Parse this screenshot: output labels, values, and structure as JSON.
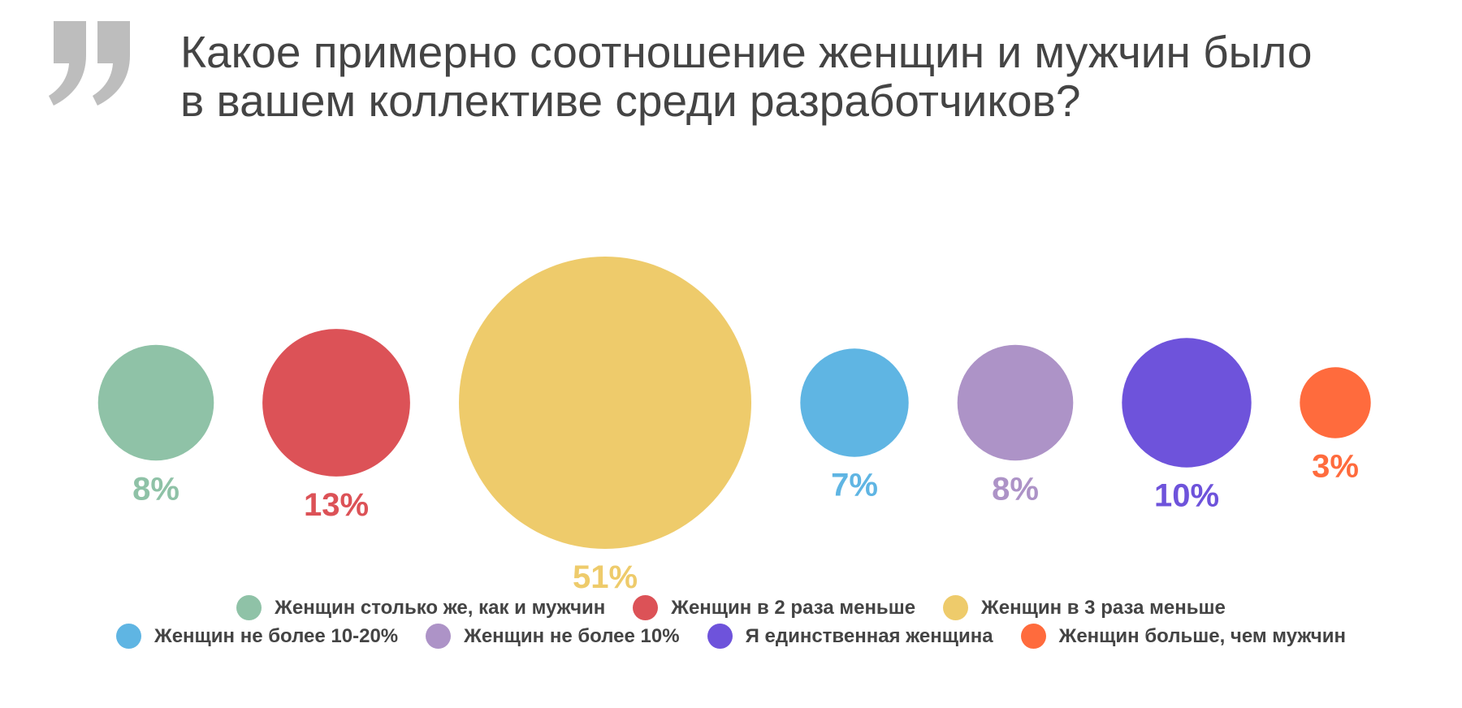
{
  "quote_icon": "closing-quote-icon",
  "colors": {
    "quote": "#bdbdbd",
    "title": "#444444",
    "legend_text": "#444444"
  },
  "chart_data": {
    "type": "bubble",
    "title_lines": [
      "Какое примерно соотношение женщин и мужчин было",
      "в вашем коллективе среди разработчиков?"
    ],
    "series": [
      {
        "name": "Женщин столько же, как и мужчин",
        "value": 8,
        "label": "8%",
        "color": "#8fc2a7"
      },
      {
        "name": "Женщин в 2 раза меньше",
        "value": 13,
        "label": "13%",
        "color": "#dc5257"
      },
      {
        "name": "Женщин в 3 раза меньше",
        "value": 51,
        "label": "51%",
        "color": "#eecb6b"
      },
      {
        "name": "Женщин не более 10-20%",
        "value": 7,
        "label": "7%",
        "color": "#5fb5e3"
      },
      {
        "name": "Женщин не более 10%",
        "value": 8,
        "label": "8%",
        "color": "#ad93c7"
      },
      {
        "name": "Я единственная женщина",
        "value": 10,
        "label": "10%",
        "color": "#6e53db"
      },
      {
        "name": "Женщин больше, чем мужчин",
        "value": 3,
        "label": "3%",
        "color": "#ff6b3d"
      }
    ],
    "legend_placement": "bottom"
  }
}
